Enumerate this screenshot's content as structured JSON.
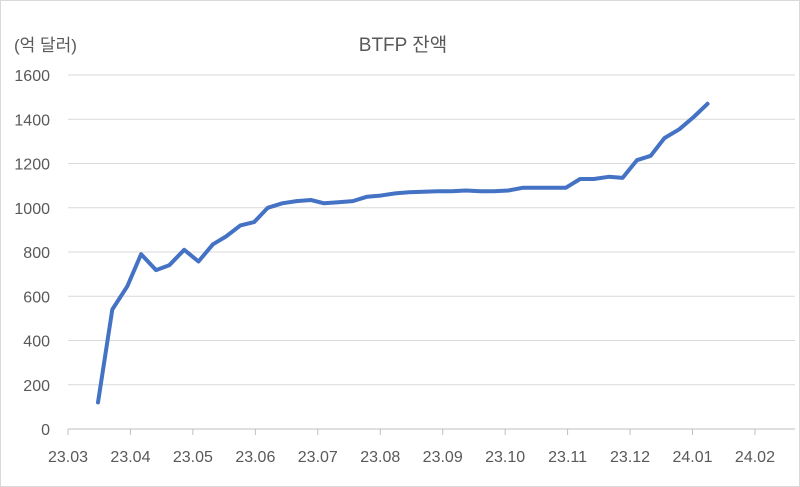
{
  "chart_data": {
    "type": "line",
    "title": "BTFP 잔액",
    "ylabel": "(억 달러)",
    "xlabel": "",
    "ylim": [
      0,
      1600
    ],
    "yticks": [
      0,
      200,
      400,
      600,
      800,
      1000,
      1200,
      1400,
      1600
    ],
    "xtick_labels": [
      "23.03",
      "23.04",
      "23.05",
      "23.06",
      "23.07",
      "23.08",
      "23.09",
      "23.10",
      "23.11",
      "23.12",
      "24.01",
      "24.02"
    ],
    "grid": true,
    "legend": null,
    "series": [
      {
        "name": "BTFP 잔액",
        "color": "#4472C4",
        "x_month_offset": [
          0.48,
          0.71,
          0.95,
          1.17,
          1.41,
          1.62,
          1.86,
          2.09,
          2.32,
          2.53,
          2.76,
          2.98,
          3.2,
          3.43,
          3.66,
          3.89,
          4.1,
          4.33,
          4.56,
          4.79,
          5.0,
          5.24,
          5.46,
          5.69,
          5.92,
          6.14,
          6.37,
          6.6,
          6.82,
          7.05,
          7.28,
          7.5,
          7.74,
          7.97,
          8.2,
          8.42,
          8.66,
          8.88,
          9.11,
          9.33,
          9.55,
          9.79,
          10.02,
          10.24,
          10.46
        ],
        "values": [
          120,
          540,
          645,
          790,
          718,
          740,
          810,
          757,
          835,
          870,
          920,
          935,
          1000,
          1020,
          1030,
          1035,
          1020,
          1025,
          1030,
          1050,
          1055,
          1065,
          1070,
          1072,
          1075,
          1075,
          1078,
          1075,
          1075,
          1078,
          1090,
          1090,
          1090,
          1090,
          1130,
          1130,
          1140,
          1135,
          1215,
          1235,
          1315,
          1355,
          1410,
          1470,
          1470
        ]
      }
    ]
  },
  "header": {
    "unit_label": "(억 달러)",
    "title": "BTFP 잔액"
  }
}
